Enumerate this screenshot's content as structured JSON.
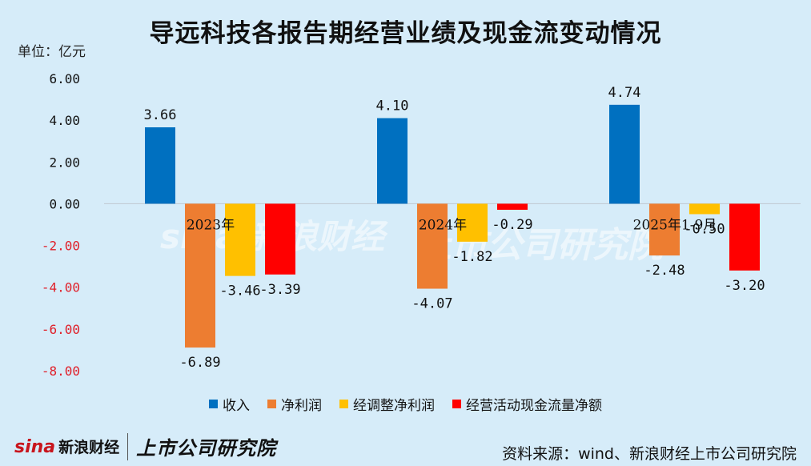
{
  "title": "导远科技各报告期经营业绩及现金流变动情况",
  "unit_label": "单位：亿元",
  "source": "资料来源：wind、新浪财经上市公司研究院",
  "logos": {
    "sina": "新浪财经",
    "research": "上市公司研究院"
  },
  "colors": {
    "background": "#d6ecf9",
    "revenue": "#0070c0",
    "net_profit": "#ed7d31",
    "adjusted_net_profit": "#ffc000",
    "operating_cash_flow": "#ff0000",
    "negative_tick": "#e0202a",
    "positive_tick": "#111111"
  },
  "chart_data": {
    "type": "bar",
    "title": "导远科技各报告期经营业绩及现金流变动情况",
    "categories": [
      "2023年",
      "2024年",
      "2025年1-9月"
    ],
    "series": [
      {
        "name": "收入",
        "values": [
          3.66,
          4.1,
          4.74
        ],
        "labels": [
          "3.66",
          "4.10",
          "4.74"
        ]
      },
      {
        "name": "净利润",
        "values": [
          -6.89,
          -4.07,
          -2.48
        ],
        "labels": [
          "-6.89",
          "-4.07",
          "-2.48"
        ]
      },
      {
        "name": "经调整净利润",
        "values": [
          -3.46,
          -1.82,
          -0.5
        ],
        "labels": [
          "-3.46",
          "-1.82",
          "-0.50"
        ]
      },
      {
        "name": "经营活动现金流量净额",
        "values": [
          -3.39,
          -0.29,
          -3.2
        ],
        "labels": [
          "-3.39",
          "-0.29",
          "-3.20"
        ]
      }
    ],
    "ylim": [
      -8,
      6
    ],
    "yticks": [
      "6.00",
      "4.00",
      "2.00",
      "0.00",
      "-2.00",
      "-4.00",
      "-6.00",
      "-8.00"
    ],
    "ylabel": "单位：亿元",
    "xlabel": "",
    "legend_position": "bottom",
    "grid": false
  }
}
